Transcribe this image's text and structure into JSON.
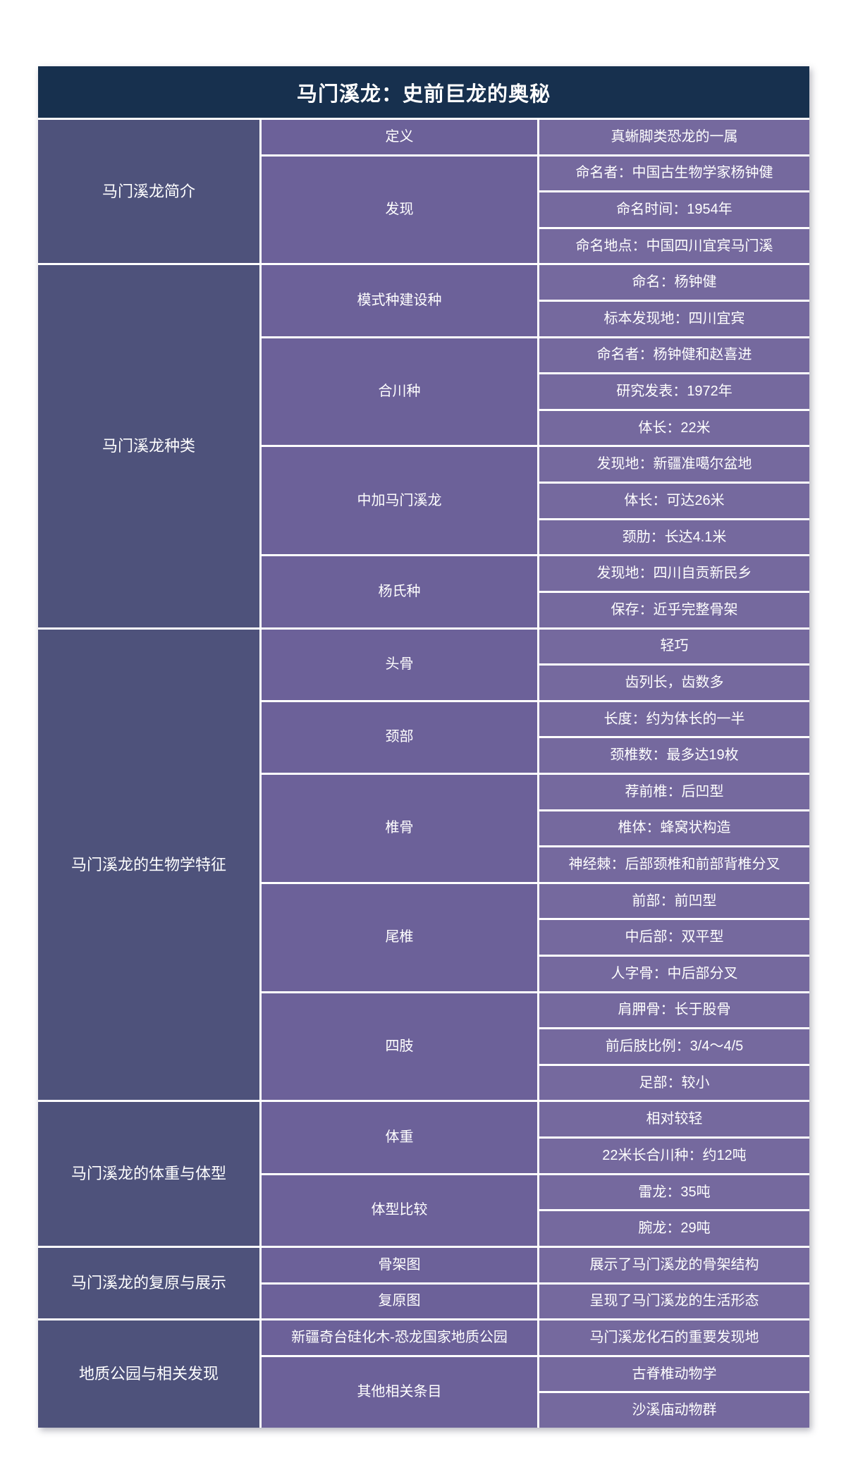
{
  "title": "马门溪龙：史前巨龙的奥秘",
  "colors": {
    "title_bg": "#17304e",
    "section_bg": "#4e527b",
    "group_bg": "#6c6199",
    "item_bg": "#75699e",
    "text": "#ffffff"
  },
  "sections": [
    {
      "label": "马门溪龙简介",
      "groups": [
        {
          "label": "定义",
          "items": [
            "真蜥脚类恐龙的一属"
          ]
        },
        {
          "label": "发现",
          "items": [
            "命名者：中国古生物学家杨钟健",
            "命名时间：1954年",
            "命名地点：中国四川宜宾马门溪"
          ]
        }
      ]
    },
    {
      "label": "马门溪龙种类",
      "groups": [
        {
          "label": "模式种建设种",
          "items": [
            "命名：杨钟健",
            "标本发现地：四川宜宾"
          ]
        },
        {
          "label": "合川种",
          "items": [
            "命名者：杨钟健和赵喜进",
            "研究发表：1972年",
            "体长：22米"
          ]
        },
        {
          "label": "中加马门溪龙",
          "items": [
            "发现地：新疆准噶尔盆地",
            "体长：可达26米",
            "颈肋：长达4.1米"
          ]
        },
        {
          "label": "杨氏种",
          "items": [
            "发现地：四川自贡新民乡",
            "保存：近乎完整骨架"
          ]
        }
      ]
    },
    {
      "label": "马门溪龙的生物学特征",
      "groups": [
        {
          "label": "头骨",
          "items": [
            "轻巧",
            "齿列长，齿数多"
          ]
        },
        {
          "label": "颈部",
          "items": [
            "长度：约为体长的一半",
            "颈椎数：最多达19枚"
          ]
        },
        {
          "label": "椎骨",
          "items": [
            "荐前椎：后凹型",
            "椎体：蜂窝状构造",
            "神经棘：后部颈椎和前部背椎分叉"
          ]
        },
        {
          "label": "尾椎",
          "items": [
            "前部：前凹型",
            "中后部：双平型",
            "人字骨：中后部分叉"
          ]
        },
        {
          "label": "四肢",
          "items": [
            "肩胛骨：长于股骨",
            "前后肢比例：3/4～4/5",
            "足部：较小"
          ]
        }
      ]
    },
    {
      "label": "马门溪龙的体重与体型",
      "groups": [
        {
          "label": "体重",
          "items": [
            "相对较轻",
            "22米长合川种：约12吨"
          ]
        },
        {
          "label": "体型比较",
          "items": [
            "雷龙：35吨",
            "腕龙：29吨"
          ]
        }
      ]
    },
    {
      "label": "马门溪龙的复原与展示",
      "groups": [
        {
          "label": "骨架图",
          "items": [
            "展示了马门溪龙的骨架结构"
          ]
        },
        {
          "label": "复原图",
          "items": [
            "呈现了马门溪龙的生活形态"
          ]
        }
      ]
    },
    {
      "label": "地质公园与相关发现",
      "groups": [
        {
          "label": "新疆奇台硅化木-恐龙国家地质公园",
          "items": [
            "马门溪龙化石的重要发现地"
          ]
        },
        {
          "label": "其他相关条目",
          "items": [
            "古脊椎动物学",
            "沙溪庙动物群"
          ]
        }
      ]
    }
  ]
}
